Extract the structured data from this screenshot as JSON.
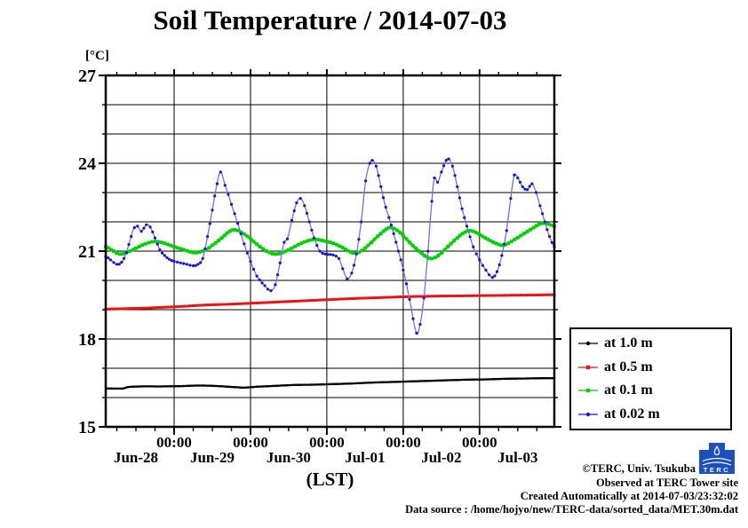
{
  "chart_data": {
    "type": "line",
    "title": "Soil Temperature / 2014-07-03",
    "xlabel": "(LST)",
    "ylabel": "[°C]",
    "ylim": [
      15,
      27
    ],
    "y_ticks_labeled": [
      15,
      18,
      21,
      24,
      27
    ],
    "y_grid_step_deg": 1,
    "x_origin": "2014-06-28 00:00",
    "x_domain_hours": [
      2.5,
      143.5
    ],
    "x_day_ticks_hours": [
      24,
      48,
      72,
      96,
      120
    ],
    "x_minor_tick_hours": 6,
    "x_time_tick_label": "00:00",
    "x_day_labels": [
      "Jun-28",
      "Jun-29",
      "Jun-30",
      "Jul-01",
      "Jul-02",
      "Jul-03"
    ],
    "grid": true,
    "legend_position": "outside-right-bottom",
    "series": [
      {
        "name": "at 1.0 m",
        "color": "#000000",
        "line_color": "#000000",
        "marker": "dot",
        "marker_size": 2.4,
        "line_width": 2.3,
        "points": [
          [
            2.5,
            16.31
          ],
          [
            8,
            16.31
          ],
          [
            9.5,
            16.36
          ],
          [
            14,
            16.38
          ],
          [
            20,
            16.38
          ],
          [
            26,
            16.39
          ],
          [
            32,
            16.41
          ],
          [
            38,
            16.39
          ],
          [
            44,
            16.35
          ],
          [
            46,
            16.34
          ],
          [
            50,
            16.37
          ],
          [
            56,
            16.4
          ],
          [
            62,
            16.43
          ],
          [
            68,
            16.44
          ],
          [
            74,
            16.46
          ],
          [
            80,
            16.48
          ],
          [
            86,
            16.51
          ],
          [
            92,
            16.53
          ],
          [
            98,
            16.55
          ],
          [
            104,
            16.57
          ],
          [
            110,
            16.59
          ],
          [
            116,
            16.61
          ],
          [
            122,
            16.62
          ],
          [
            128,
            16.64
          ],
          [
            134,
            16.65
          ],
          [
            140,
            16.66
          ],
          [
            143.5,
            16.66
          ]
        ]
      },
      {
        "name": "at 0.5 m",
        "color": "#ee1111",
        "line_color": "#ee1111",
        "marker": "square",
        "marker_size": 3.0,
        "line_width": 2.6,
        "points": [
          [
            2.5,
            19.02
          ],
          [
            10,
            19.04
          ],
          [
            18,
            19.07
          ],
          [
            26,
            19.11
          ],
          [
            34,
            19.16
          ],
          [
            42,
            19.19
          ],
          [
            48,
            19.22
          ],
          [
            56,
            19.26
          ],
          [
            64,
            19.3
          ],
          [
            72,
            19.34
          ],
          [
            80,
            19.38
          ],
          [
            88,
            19.41
          ],
          [
            96,
            19.44
          ],
          [
            104,
            19.46
          ],
          [
            112,
            19.47
          ],
          [
            120,
            19.48
          ],
          [
            128,
            19.49
          ],
          [
            136,
            19.5
          ],
          [
            143.5,
            19.51
          ]
        ]
      },
      {
        "name": "at 0.1 m",
        "color": "#00d400",
        "line_color": "#00d400",
        "marker": "square",
        "marker_size": 3.8,
        "line_width": 3.0,
        "points": [
          [
            2.5,
            21.15
          ],
          [
            5,
            21.0
          ],
          [
            7,
            20.9
          ],
          [
            9,
            20.95
          ],
          [
            12,
            21.1
          ],
          [
            15,
            21.25
          ],
          [
            18,
            21.33
          ],
          [
            21,
            21.27
          ],
          [
            24,
            21.15
          ],
          [
            27,
            21.05
          ],
          [
            30,
            20.95
          ],
          [
            32,
            20.97
          ],
          [
            34,
            21.05
          ],
          [
            36,
            21.2
          ],
          [
            39,
            21.45
          ],
          [
            41.5,
            21.68
          ],
          [
            43,
            21.73
          ],
          [
            45,
            21.65
          ],
          [
            48,
            21.42
          ],
          [
            51,
            21.15
          ],
          [
            54,
            20.95
          ],
          [
            56,
            20.9
          ],
          [
            58,
            20.95
          ],
          [
            61,
            21.1
          ],
          [
            64,
            21.27
          ],
          [
            67,
            21.38
          ],
          [
            68.5,
            21.4
          ],
          [
            71,
            21.35
          ],
          [
            74,
            21.27
          ],
          [
            77,
            21.12
          ],
          [
            79.5,
            20.97
          ],
          [
            81,
            20.93
          ],
          [
            83,
            21.02
          ],
          [
            86,
            21.3
          ],
          [
            89,
            21.6
          ],
          [
            91.5,
            21.8
          ],
          [
            93,
            21.77
          ],
          [
            95,
            21.63
          ],
          [
            98,
            21.3
          ],
          [
            101,
            21.0
          ],
          [
            103.5,
            20.8
          ],
          [
            105,
            20.75
          ],
          [
            107,
            20.85
          ],
          [
            110,
            21.15
          ],
          [
            113,
            21.45
          ],
          [
            115.5,
            21.65
          ],
          [
            117,
            21.7
          ],
          [
            119,
            21.63
          ],
          [
            121,
            21.5
          ],
          [
            123.5,
            21.35
          ],
          [
            126,
            21.23
          ],
          [
            127.5,
            21.2
          ],
          [
            129,
            21.27
          ],
          [
            131,
            21.4
          ],
          [
            134,
            21.6
          ],
          [
            137,
            21.8
          ],
          [
            139.5,
            21.95
          ],
          [
            141.5,
            21.93
          ],
          [
            143.5,
            21.85
          ]
        ]
      },
      {
        "name": "at 0.02 m",
        "color": "#1414dd",
        "line_color": "#7070e2",
        "marker": "dot",
        "marker_size": 3.2,
        "line_width": 1.3,
        "points": [
          [
            2.5,
            20.82
          ],
          [
            4,
            20.7
          ],
          [
            6,
            20.55
          ],
          [
            7.5,
            20.62
          ],
          [
            9,
            20.95
          ],
          [
            10.5,
            21.5
          ],
          [
            11.5,
            21.8
          ],
          [
            12.5,
            21.85
          ],
          [
            13.7,
            21.68
          ],
          [
            15.3,
            21.9
          ],
          [
            16.5,
            21.82
          ],
          [
            18,
            21.45
          ],
          [
            19.5,
            21.05
          ],
          [
            21,
            20.85
          ],
          [
            22.5,
            20.72
          ],
          [
            24,
            20.65
          ],
          [
            26,
            20.6
          ],
          [
            28,
            20.55
          ],
          [
            30,
            20.5
          ],
          [
            31.5,
            20.55
          ],
          [
            33,
            20.75
          ],
          [
            34.5,
            21.5
          ],
          [
            36,
            22.4
          ],
          [
            37.5,
            23.3
          ],
          [
            38.6,
            23.7
          ],
          [
            40,
            23.25
          ],
          [
            42,
            22.6
          ],
          [
            44,
            21.95
          ],
          [
            46,
            21.25
          ],
          [
            48,
            20.65
          ],
          [
            50,
            20.15
          ],
          [
            52.5,
            19.82
          ],
          [
            54.4,
            19.65
          ],
          [
            55.8,
            19.85
          ],
          [
            57.3,
            20.6
          ],
          [
            58.6,
            21.3
          ],
          [
            59.6,
            21.42
          ],
          [
            61,
            22.05
          ],
          [
            62.5,
            22.65
          ],
          [
            63.7,
            22.8
          ],
          [
            65,
            22.55
          ],
          [
            66.5,
            22.0
          ],
          [
            68,
            21.45
          ],
          [
            69.8,
            21.0
          ],
          [
            71.5,
            20.9
          ],
          [
            74,
            20.87
          ],
          [
            75.8,
            20.75
          ],
          [
            77,
            20.4
          ],
          [
            78.4,
            20.05
          ],
          [
            79.8,
            20.25
          ],
          [
            81.3,
            20.9
          ],
          [
            82.8,
            22.0
          ],
          [
            84.2,
            23.4
          ],
          [
            85.5,
            24.0
          ],
          [
            86.3,
            24.1
          ],
          [
            87.5,
            23.9
          ],
          [
            89,
            23.2
          ],
          [
            90.5,
            22.5
          ],
          [
            91.5,
            22.15
          ],
          [
            93,
            21.6
          ],
          [
            94.5,
            21.0
          ],
          [
            96,
            20.35
          ],
          [
            98,
            19.35
          ],
          [
            100.2,
            18.2
          ],
          [
            101.3,
            18.5
          ],
          [
            102.5,
            19.4
          ],
          [
            103.8,
            21.0
          ],
          [
            105,
            22.7
          ],
          [
            105.8,
            23.5
          ],
          [
            106.8,
            23.35
          ],
          [
            108,
            23.7
          ],
          [
            109.5,
            24.1
          ],
          [
            110.3,
            24.15
          ],
          [
            111.5,
            23.9
          ],
          [
            113,
            23.2
          ],
          [
            114.5,
            22.45
          ],
          [
            116,
            21.85
          ],
          [
            118,
            21.15
          ],
          [
            120,
            20.7
          ],
          [
            122,
            20.35
          ],
          [
            124,
            20.1
          ],
          [
            125.5,
            20.3
          ],
          [
            127,
            20.85
          ],
          [
            128.5,
            21.7
          ],
          [
            129.8,
            22.8
          ],
          [
            130.9,
            23.6
          ],
          [
            132,
            23.5
          ],
          [
            133.5,
            23.2
          ],
          [
            135,
            23.1
          ],
          [
            136.5,
            23.3
          ],
          [
            137.8,
            23.0
          ],
          [
            139,
            22.55
          ],
          [
            140.5,
            22.0
          ],
          [
            142,
            21.5
          ],
          [
            143.5,
            21.15
          ]
        ]
      }
    ]
  },
  "footer": {
    "credit": "©TERC, Univ. Tsukuba",
    "observed": "Observed at TERC Tower site",
    "created": "Created Automatically at 2014-07-03/23:32:02",
    "source": "Data source : /home/hojyo/new/TERC-data/sorted_data/MET.30m.dat",
    "logo_text": "TERC",
    "logo_color": "#1d4fc0"
  }
}
